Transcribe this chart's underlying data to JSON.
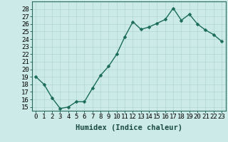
{
  "x": [
    0,
    1,
    2,
    3,
    4,
    5,
    6,
    7,
    8,
    9,
    10,
    11,
    12,
    13,
    14,
    15,
    16,
    17,
    18,
    19,
    20,
    21,
    22,
    23
  ],
  "y": [
    19.0,
    18.0,
    16.2,
    14.8,
    15.0,
    15.7,
    15.7,
    17.5,
    19.2,
    20.4,
    22.0,
    24.3,
    26.3,
    25.3,
    25.6,
    26.1,
    26.6,
    28.1,
    26.5,
    27.3,
    26.0,
    25.2,
    24.6,
    23.7
  ],
  "line_color": "#1a6b5a",
  "marker": "D",
  "marker_size": 2.5,
  "background_color": "#cceae7",
  "grid_color": "#b0d8d4",
  "xlabel": "Humidex (Indice chaleur)",
  "xlim": [
    -0.5,
    23.5
  ],
  "ylim": [
    14.5,
    29
  ],
  "yticks": [
    15,
    16,
    17,
    18,
    19,
    20,
    21,
    22,
    23,
    24,
    25,
    26,
    27,
    28
  ],
  "xticks": [
    0,
    1,
    2,
    3,
    4,
    5,
    6,
    7,
    8,
    9,
    10,
    11,
    12,
    13,
    14,
    15,
    16,
    17,
    18,
    19,
    20,
    21,
    22,
    23
  ],
  "xlabel_fontsize": 7.5,
  "tick_fontsize": 6.5,
  "line_width": 1.0
}
